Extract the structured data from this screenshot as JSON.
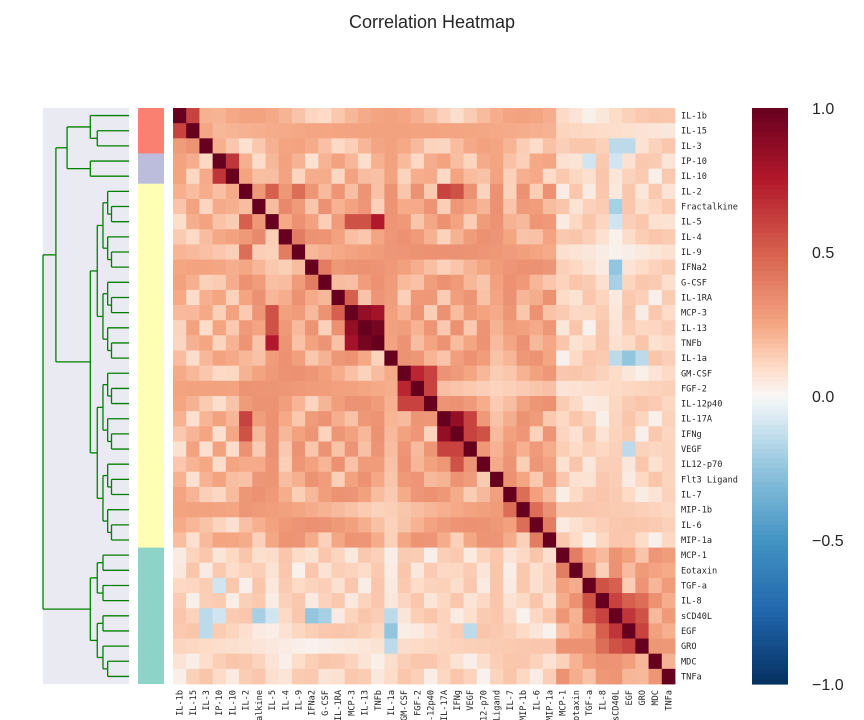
{
  "chart_data": {
    "type": "heatmap",
    "title": "Correlation Heatmap",
    "labels": [
      "IL-1b",
      "IL-15",
      "IL-3",
      "IP-10",
      "IL-10",
      "IL-2",
      "Fractalkine",
      "IL-5",
      "IL-4",
      "IL-9",
      "IFNa2",
      "G-CSF",
      "IL-1RA",
      "MCP-3",
      "IL-13",
      "TNFb",
      "IL-1a",
      "GM-CSF",
      "FGF-2",
      "IL-12p40",
      "IL-17A",
      "IFNg",
      "VEGF",
      "IL12-p70",
      "Flt3 Ligand",
      "IL-7",
      "MIP-1b",
      "IL-6",
      "MIP-1a",
      "MCP-1",
      "Eotaxin",
      "TGF-a",
      "IL-8",
      "sCD40L",
      "EGF",
      "GRO",
      "MDC",
      "TNFa"
    ],
    "clusters": [
      {
        "color": "#fa8072",
        "members": [
          "IL-1b",
          "IL-15",
          "IL-3"
        ]
      },
      {
        "color": "#bcbddc",
        "members": [
          "IP-10",
          "IL-10"
        ]
      },
      {
        "color": "#ffffb3",
        "members": [
          "IL-2",
          "Fractalkine",
          "IL-5",
          "IL-4",
          "IL-9",
          "IFNa2",
          "G-CSF",
          "IL-1RA",
          "MCP-3",
          "IL-13",
          "TNFb",
          "IL-1a",
          "GM-CSF",
          "FGF-2",
          "IL-12p40",
          "IL-17A",
          "IFNg",
          "VEGF",
          "IL12-p70",
          "Flt3 Ligand",
          "IL-7",
          "MIP-1b",
          "IL-6",
          "MIP-1a"
        ]
      },
      {
        "color": "#8dd3c7",
        "members": [
          "MCP-1",
          "Eotaxin",
          "TGF-a",
          "IL-8",
          "sCD40L",
          "EGF",
          "GRO",
          "MDC",
          "TNFa"
        ]
      }
    ],
    "colorbar": {
      "vmin": -1.0,
      "vmax": 1.0,
      "ticks": [
        1.0,
        0.5,
        0.0,
        -0.5,
        -1.0
      ],
      "tick_labels": [
        "1.0",
        "0.5",
        "0.0",
        "−0.5",
        "−1.0"
      ],
      "colormap": "RdBu_r"
    },
    "strong_pairs": [
      [
        "IL-1b",
        "IL-15",
        0.6
      ],
      [
        "IP-10",
        "IL-10",
        0.65
      ],
      [
        "MCP-3",
        "IL-13",
        0.85
      ],
      [
        "MCP-3",
        "TNFb",
        0.8
      ],
      [
        "IL-13",
        "TNFb",
        0.95
      ],
      [
        "IL-5",
        "TNFb",
        0.75
      ],
      [
        "IL-5",
        "IL-13",
        0.55
      ],
      [
        "IL-5",
        "MCP-3",
        0.55
      ],
      [
        "GM-CSF",
        "FGF-2",
        0.7
      ],
      [
        "GM-CSF",
        "IL-12p40",
        0.6
      ],
      [
        "FGF-2",
        "IL-12p40",
        0.6
      ],
      [
        "IL-17A",
        "IFNg",
        0.85
      ],
      [
        "IL-17A",
        "VEGF",
        0.6
      ],
      [
        "IFNg",
        "VEGF",
        0.6
      ],
      [
        "IFNg",
        "IL12-p70",
        0.55
      ],
      [
        "IL-2",
        "IL-5",
        0.5
      ],
      [
        "IL-2",
        "IL-17A",
        0.6
      ],
      [
        "IL-2",
        "IFNg",
        0.55
      ],
      [
        "IL-1RA",
        "MCP-3",
        0.5
      ],
      [
        "TGF-a",
        "IL-8",
        0.55
      ],
      [
        "TGF-a",
        "sCD40L",
        0.5
      ],
      [
        "IL-8",
        "sCD40L",
        0.6
      ],
      [
        "IL-8",
        "EGF",
        0.5
      ],
      [
        "sCD40L",
        "EGF",
        0.65
      ],
      [
        "sCD40L",
        "GRO",
        0.55
      ],
      [
        "EGF",
        "GRO",
        0.6
      ],
      [
        "IL-8",
        "GRO",
        0.45
      ],
      [
        "MCP-1",
        "Eotaxin",
        0.4
      ],
      [
        "IL-7",
        "MIP-1b",
        0.45
      ],
      [
        "MIP-1b",
        "IL-6",
        0.45
      ],
      [
        "IL-6",
        "MIP-1a",
        0.4
      ],
      [
        "IL-9",
        "IL-2",
        0.45
      ],
      [
        "IFNa2",
        "G-CSF",
        0.4
      ],
      [
        "IL-4",
        "IL-9",
        0.4
      ],
      [
        "Fractalkine",
        "IL-4",
        0.35
      ]
    ],
    "negative_pairs": [
      [
        "sCD40L",
        "IFNa2",
        -0.25
      ],
      [
        "sCD40L",
        "G-CSF",
        -0.2
      ],
      [
        "EGF",
        "IL-1a",
        -0.25
      ],
      [
        "sCD40L",
        "IL-1a",
        -0.15
      ],
      [
        "TGF-a",
        "IP-10",
        -0.1
      ],
      [
        "IL-3",
        "sCD40L",
        -0.15
      ],
      [
        "IL-3",
        "EGF",
        -0.15
      ],
      [
        "sCD40L",
        "Fractalkine",
        -0.2
      ],
      [
        "GRO",
        "IL-1a",
        -0.15
      ],
      [
        "EGF",
        "VEGF",
        -0.15
      ],
      [
        "IP-10",
        "sCD40L",
        -0.1
      ],
      [
        "IL-5",
        "sCD40L",
        -0.1
      ]
    ],
    "diagonal": 1.0
  }
}
